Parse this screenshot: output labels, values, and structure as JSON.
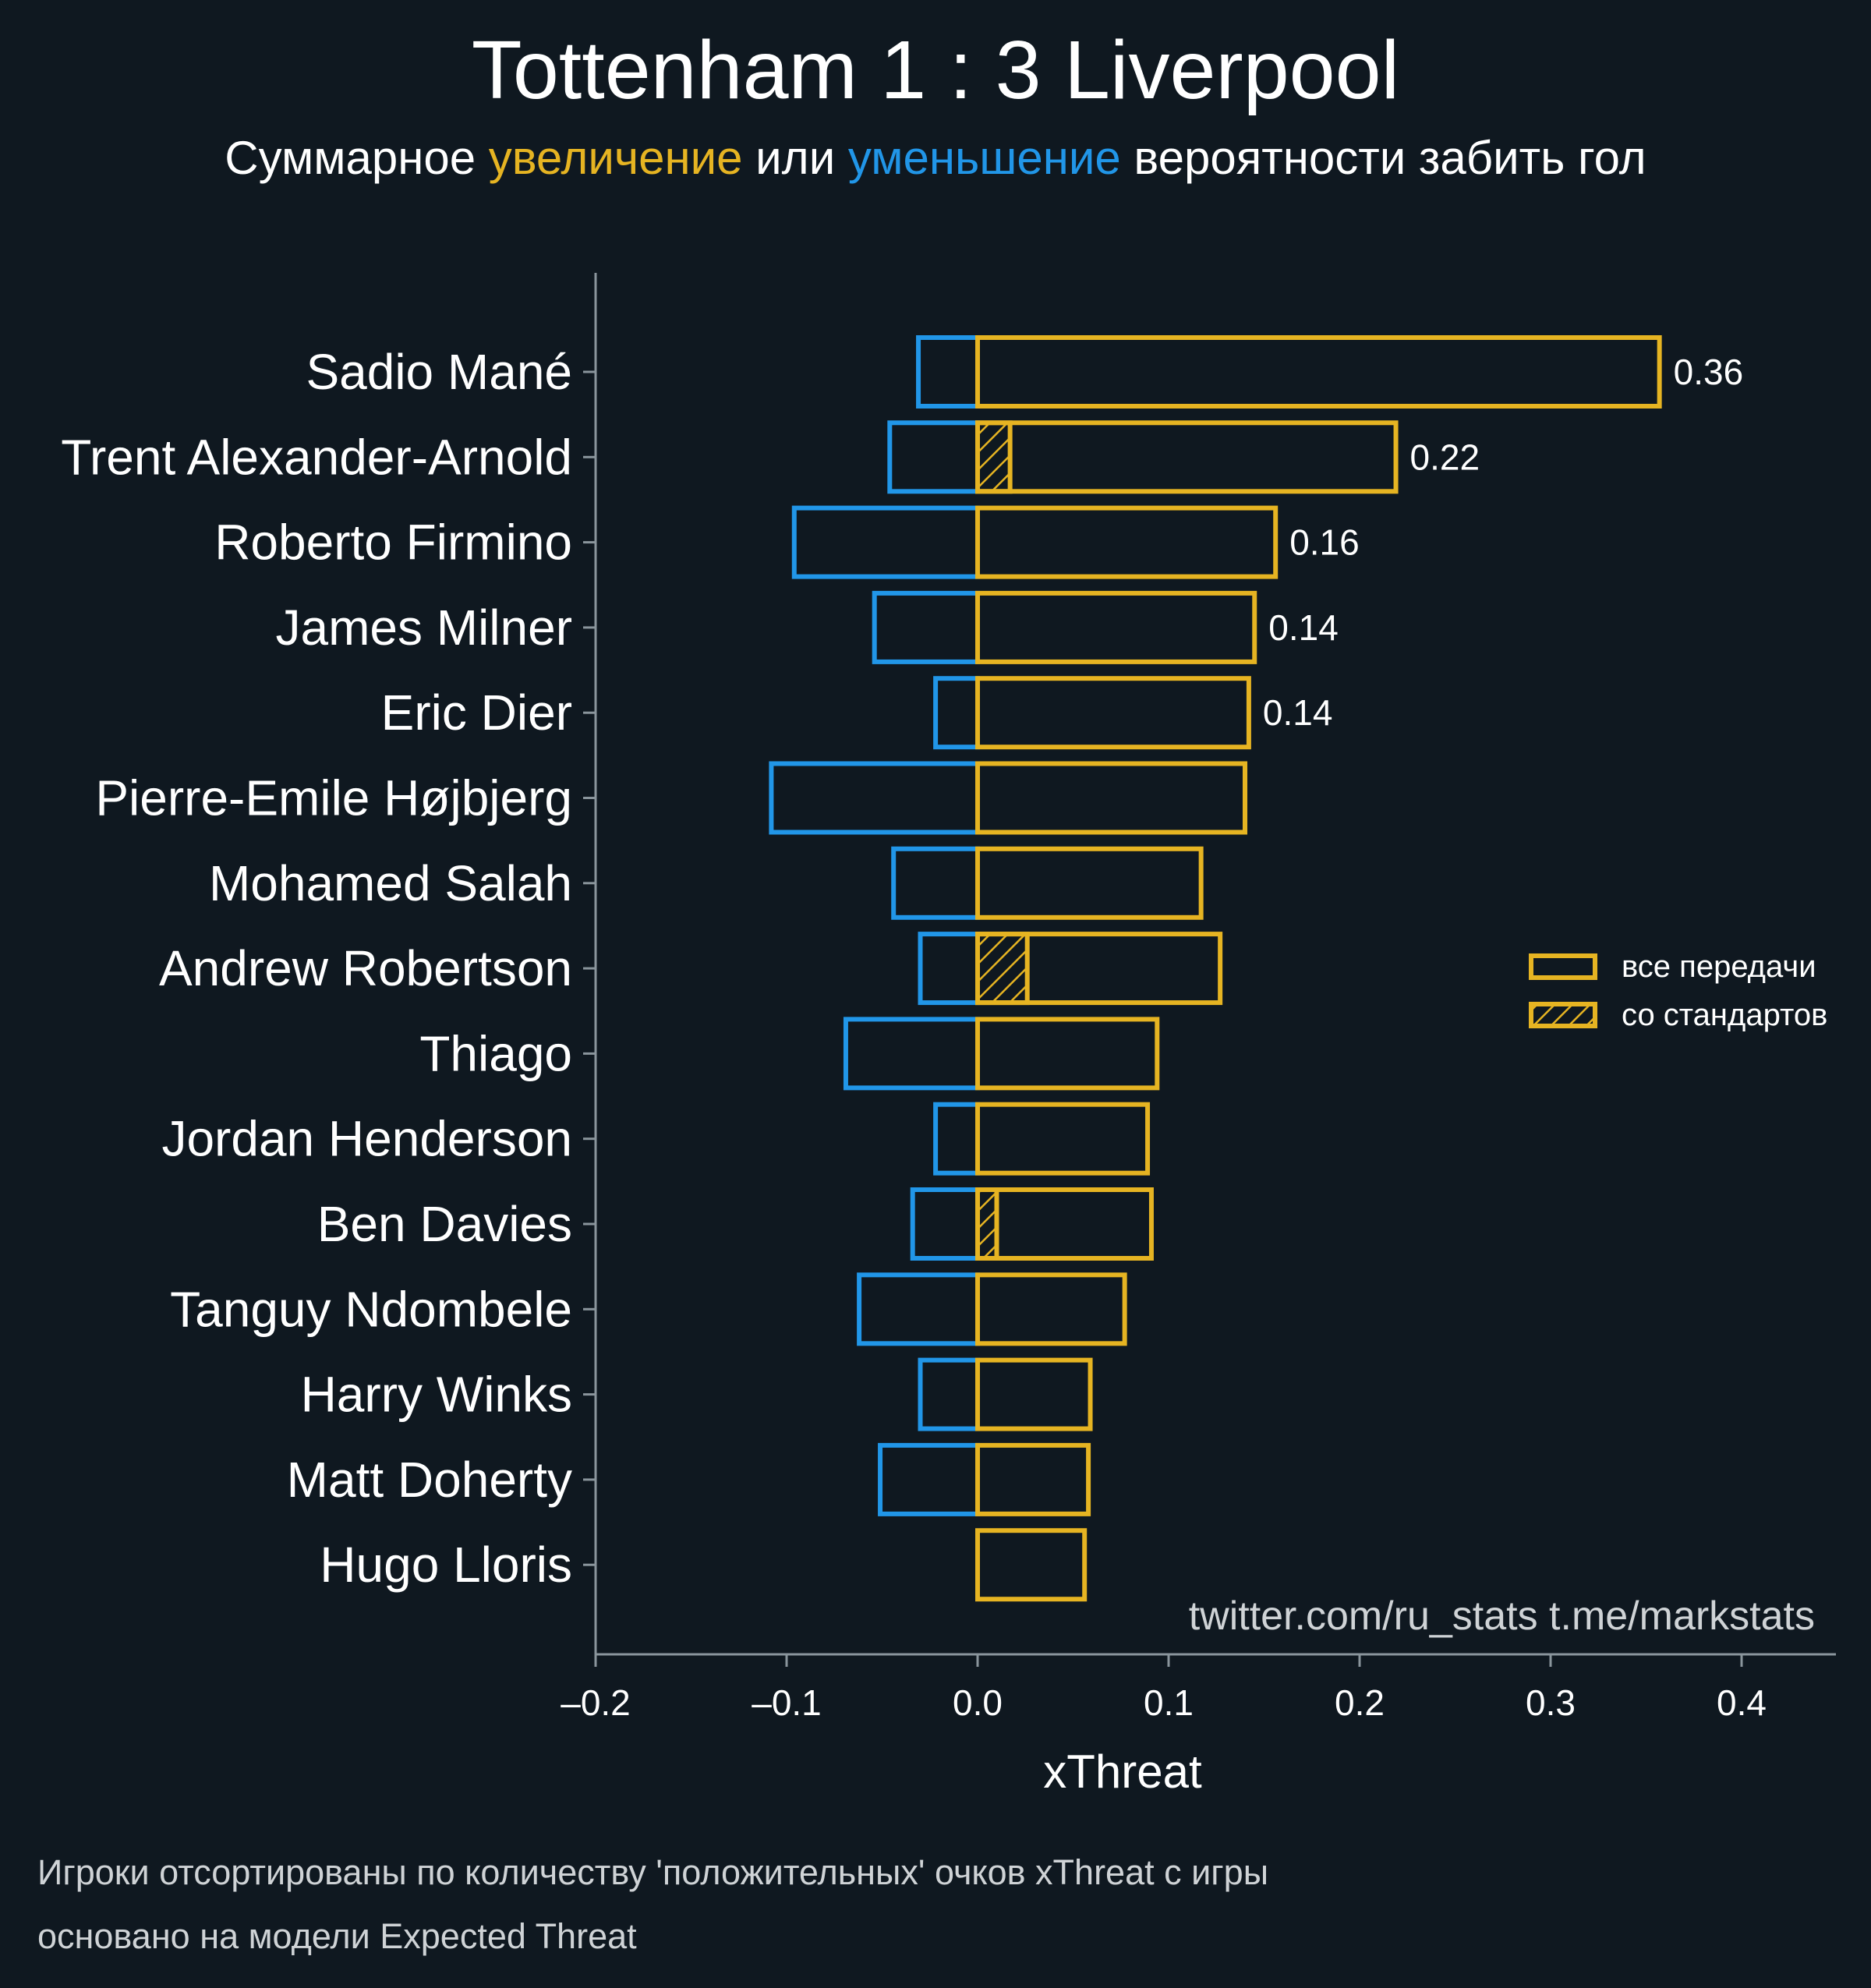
{
  "colors": {
    "background": "#0f1820",
    "positive": "#e6b422",
    "negative": "#2196e8",
    "axis": "#8a959c",
    "text": "#ffffff",
    "muted": "#cfd3d6"
  },
  "header": {
    "title": "Tottenham 1 : 3 Liverpool",
    "subtitle_part1": "Суммарное ",
    "subtitle_positive": "увеличение",
    "subtitle_part2": " или ",
    "subtitle_negative": "уменьшение",
    "subtitle_part3": " вероятности забить гол"
  },
  "credits": "twitter.com/ru_stats  t.me/markstats",
  "footnotes": {
    "line1": "Игроки отсортированы по количеству 'положительных' очков xThreat с игры",
    "line2": "основано на модели Expected Threat"
  },
  "chart_data": {
    "type": "bar",
    "orientation": "horizontal",
    "xlabel": "xThreat",
    "xlim": [
      -0.2,
      0.45
    ],
    "xticks": [
      -0.2,
      -0.1,
      0.0,
      0.1,
      0.2,
      0.3,
      0.4
    ],
    "xtick_labels": [
      "–0.2",
      "–0.1",
      "0.0",
      "0.1",
      "0.2",
      "0.3",
      "0.4"
    ],
    "legend_position": "right",
    "legend": [
      {
        "label": "все передачи",
        "style": "outline"
      },
      {
        "label": "со стандартов",
        "style": "hatched"
      }
    ],
    "categories": [
      "Sadio Mané",
      "Trent Alexander-Arnold",
      "Roberto Firmino",
      "James Milner",
      "Eric Dier",
      "Pierre-Emile Højbjerg",
      "Mohamed Salah",
      "Andrew Robertson",
      "Thiago",
      "Jordan Henderson",
      "Ben Davies",
      "Tanguy Ndombele",
      "Harry Winks",
      "Matt Doherty",
      "Hugo Lloris"
    ],
    "series": [
      {
        "name": "positive",
        "values": [
          0.357,
          0.219,
          0.156,
          0.145,
          0.142,
          0.14,
          0.117,
          0.127,
          0.094,
          0.089,
          0.091,
          0.077,
          0.059,
          0.058,
          0.056
        ]
      },
      {
        "name": "negative",
        "values": [
          -0.031,
          -0.046,
          -0.096,
          -0.054,
          -0.022,
          -0.108,
          -0.044,
          -0.03,
          -0.069,
          -0.022,
          -0.034,
          -0.062,
          -0.03,
          -0.051,
          0.0
        ]
      },
      {
        "name": "set_pieces",
        "values": [
          0.0,
          0.017,
          0.0,
          0.0,
          0.0,
          0.0,
          0.0,
          0.026,
          0.0,
          0.0,
          0.01,
          0.0,
          0.0,
          0.0,
          0.0
        ]
      }
    ],
    "data_labels": [
      "0.36",
      "0.22",
      "0.16",
      "0.14",
      "0.14",
      "",
      "",
      "",
      "",
      "",
      "",
      "",
      "",
      "",
      ""
    ]
  }
}
